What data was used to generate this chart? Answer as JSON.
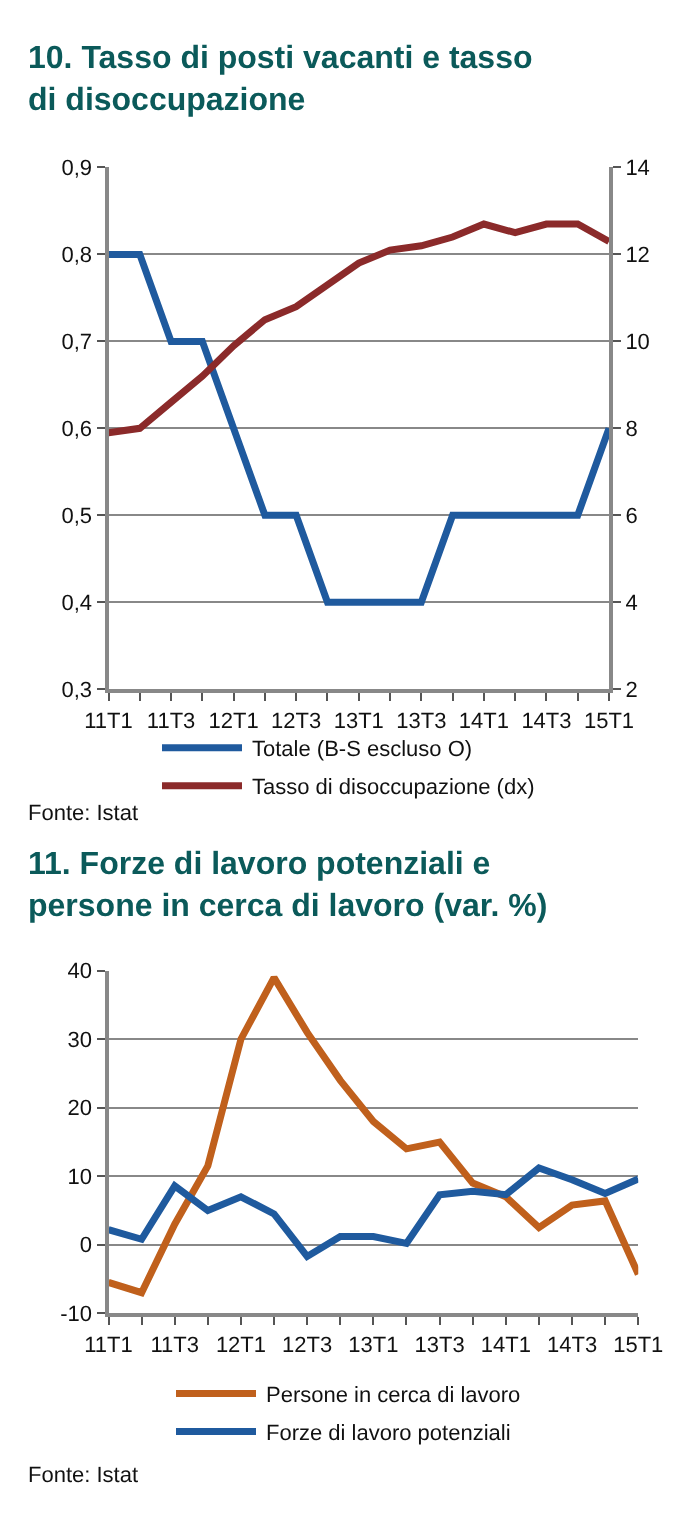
{
  "chart_data": [
    {
      "type": "line",
      "title": "10. Tasso di posti vacanti e tasso di disoccupazione",
      "categories": [
        "11T1",
        null,
        "11T3",
        null,
        "12T1",
        null,
        "12T3",
        null,
        "13T1",
        null,
        "13T3",
        null,
        "14T1",
        null,
        "14T3",
        null,
        "15T1"
      ],
      "series": [
        {
          "name": "Totale (B-S escluso O)",
          "color": "#1f5a9e",
          "values": [
            0.8,
            0.8,
            0.7,
            0.7,
            0.6,
            0.5,
            0.5,
            0.4,
            0.4,
            0.4,
            0.4,
            0.5,
            0.5,
            0.5,
            0.5,
            0.5,
            0.6
          ]
        },
        {
          "name": "Tasso di disoccupazione (dx)",
          "color": "#8b2a2a",
          "axis": "y2",
          "values": [
            7.9,
            8.0,
            8.6,
            9.2,
            9.9,
            10.5,
            10.8,
            11.3,
            11.8,
            12.1,
            12.2,
            12.4,
            12.7,
            12.5,
            12.7,
            12.7,
            12.3
          ]
        }
      ],
      "ylim": [
        0.3,
        0.9
      ],
      "yticks": [
        {
          "value": 0.3,
          "label": "0,3"
        },
        {
          "value": 0.4,
          "label": "0,4"
        },
        {
          "value": 0.5,
          "label": "0,5"
        },
        {
          "value": 0.6,
          "label": "0,6"
        },
        {
          "value": 0.7,
          "label": "0,7"
        },
        {
          "value": 0.8,
          "label": "0,8"
        },
        {
          "value": 0.9,
          "label": "0,9"
        }
      ],
      "y2lim": [
        2,
        14
      ],
      "y2ticks": [
        2,
        4,
        6,
        8,
        10,
        12,
        14
      ],
      "grid": "y",
      "legend": "bottom",
      "annotations": [
        "Fonte: Istat"
      ]
    },
    {
      "type": "line",
      "title": "11. Forze di lavoro potenziali e persone in cerca di lavoro (var. %)",
      "categories": [
        "11T1",
        null,
        "11T3",
        null,
        "12T1",
        null,
        "12T3",
        null,
        "13T1",
        null,
        "13T3",
        null,
        "14T1",
        null,
        "14T3",
        null,
        "15T1"
      ],
      "series": [
        {
          "name": "Persone in cerca di lavoro",
          "color": "#c0601c",
          "values": [
            -5.5,
            -7,
            3,
            11.5,
            30,
            39,
            31,
            24,
            18,
            14,
            15,
            9,
            7,
            2.5,
            5.8,
            6.4,
            -4.3
          ]
        },
        {
          "name": "Forze di lavoro potenziali",
          "color": "#1f5a9e",
          "values": [
            2.2,
            0.8,
            8.6,
            5,
            7,
            4.5,
            -1.7,
            1.2,
            1.2,
            0.2,
            7.3,
            7.8,
            7.3,
            11.2,
            9.5,
            7.5,
            9.6
          ]
        }
      ],
      "ylim": [
        -10,
        40
      ],
      "yticks": [
        -10,
        0,
        10,
        20,
        30,
        40
      ],
      "grid": "y",
      "legend": "bottom",
      "annotations": [
        "Fonte: Istat"
      ]
    }
  ]
}
